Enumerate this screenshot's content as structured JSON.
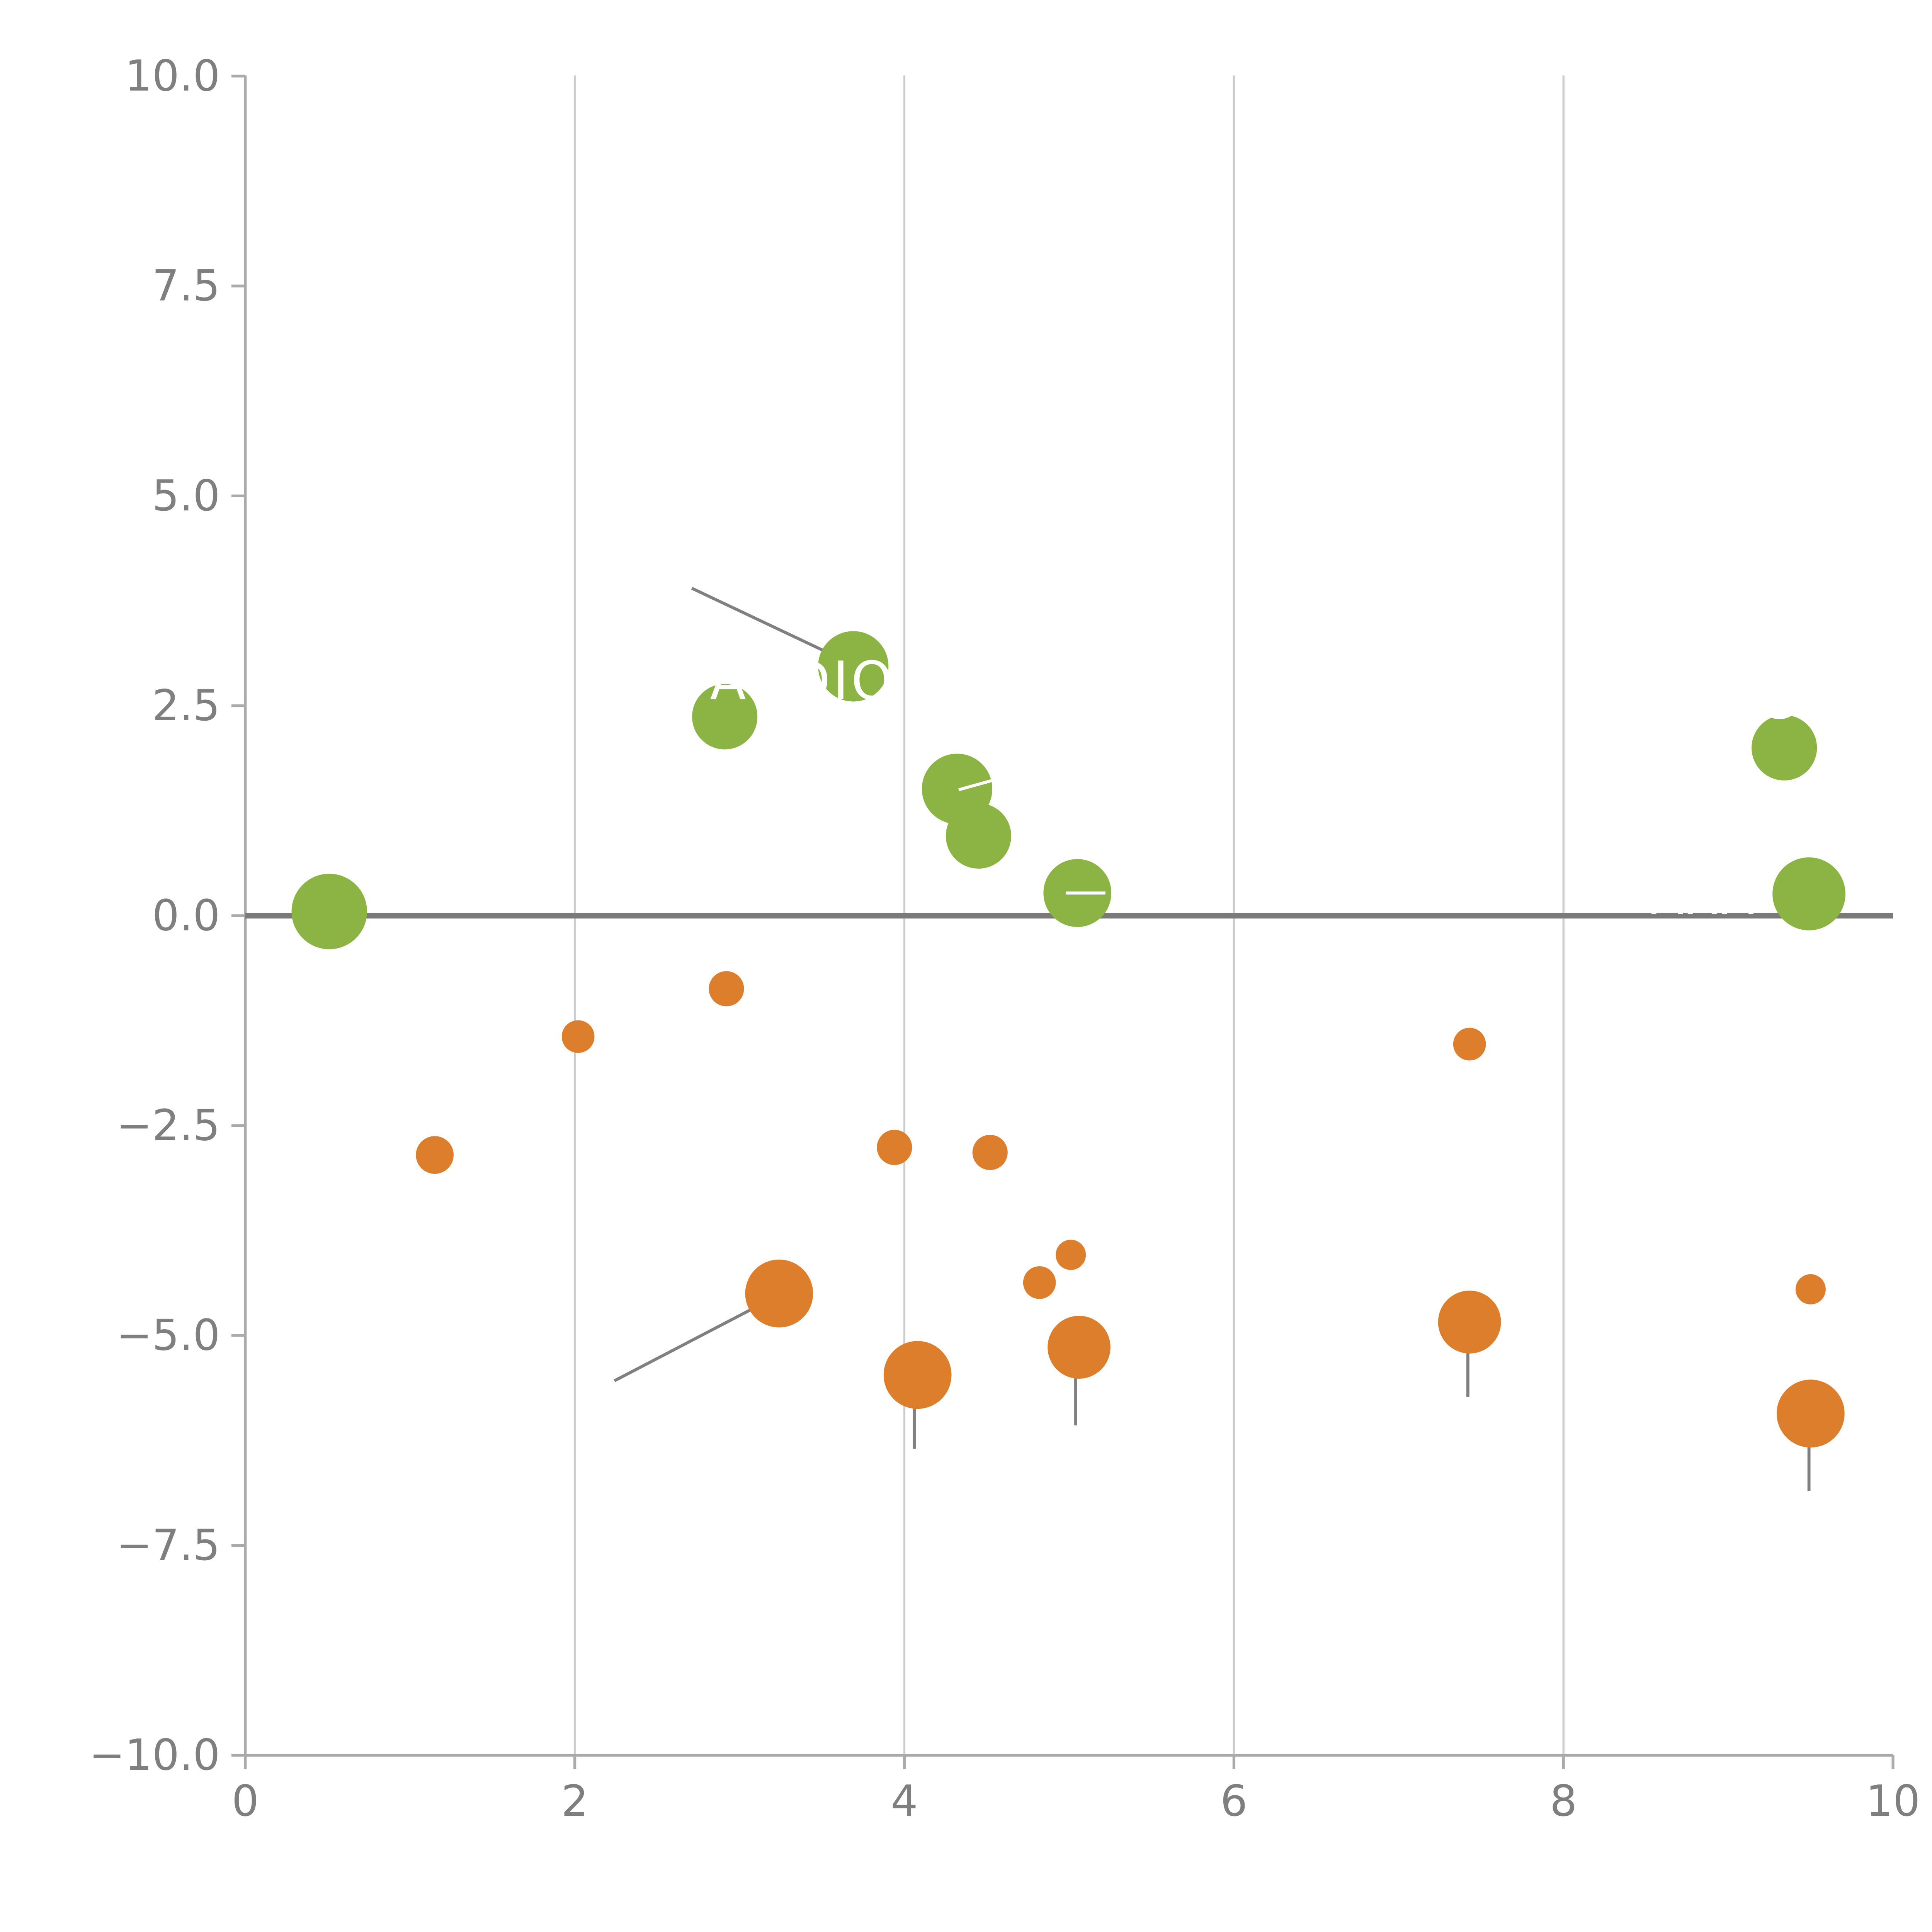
{
  "chart_data": {
    "type": "scatter",
    "title": "",
    "xlabel": "",
    "ylabel": "",
    "x_axis": {
      "min": 0,
      "max": 10,
      "tick_labels": [
        "0",
        "2",
        "4",
        "6",
        "8",
        "10"
      ],
      "tick_values": [
        0,
        2,
        4,
        6,
        8,
        10
      ]
    },
    "y_axis": {
      "min": -10,
      "max": 10,
      "tick_labels": [
        "10.0",
        "7.5",
        "5.0",
        "2.5",
        "0.0",
        "−2.5",
        "−5.0",
        "−7.5",
        "−10.0"
      ],
      "tick_values": [
        10,
        7.5,
        5,
        2.5,
        0,
        -2.5,
        -5,
        -7.5,
        -10
      ]
    },
    "grid": {
      "vertical_at": [
        2,
        4,
        6,
        8
      ],
      "horizontal": false
    },
    "zero_line": {
      "y": 0
    },
    "legend": "none",
    "series": [
      {
        "name": "positive-change-bubbles",
        "color": "#8cb445",
        "points": [
          {
            "x": 0.51,
            "y": 0.05,
            "r": 30
          },
          {
            "x": 2.91,
            "y": 2.37,
            "r": 26
          },
          {
            "x": 3.69,
            "y": 2.97,
            "r": 28
          },
          {
            "x": 4.32,
            "y": 1.51,
            "r": 28
          },
          {
            "x": 4.45,
            "y": 0.95,
            "r": 26
          },
          {
            "x": 5.05,
            "y": 0.27,
            "r": 27
          },
          {
            "x": 9.34,
            "y": 2.0,
            "r": 26
          },
          {
            "x": 9.49,
            "y": 0.26,
            "r": 29
          }
        ]
      },
      {
        "name": "negative-change-bubbles",
        "color": "#dd7e2c",
        "points": [
          {
            "x": 1.15,
            "y": -2.85,
            "r": 15
          },
          {
            "x": 2.02,
            "y": -1.44,
            "r": 13
          },
          {
            "x": 2.92,
            "y": -0.87,
            "r": 14
          },
          {
            "x": 3.24,
            "y": -4.5,
            "r": 27
          },
          {
            "x": 3.94,
            "y": -2.76,
            "r": 14
          },
          {
            "x": 4.08,
            "y": -5.47,
            "r": 27
          },
          {
            "x": 4.52,
            "y": -2.82,
            "r": 14
          },
          {
            "x": 4.82,
            "y": -4.37,
            "r": 13
          },
          {
            "x": 5.01,
            "y": -4.04,
            "r": 12
          },
          {
            "x": 5.06,
            "y": -5.14,
            "r": 25
          },
          {
            "x": 7.43,
            "y": -1.53,
            "r": 13
          },
          {
            "x": 7.43,
            "y": -4.84,
            "r": 25
          },
          {
            "x": 9.5,
            "y": -4.45,
            "r": 12
          },
          {
            "x": 9.5,
            "y": -5.93,
            "r": 27
          }
        ]
      }
    ],
    "leader_lines": [
      {
        "x1": 2.71,
        "y1": 3.9,
        "x2": 3.55,
        "y2": 3.12,
        "color": "#808080"
      },
      {
        "x1": 3.09,
        "y1": -4.67,
        "x2": 2.24,
        "y2": -5.54,
        "color": "#808080"
      },
      {
        "x1": 4.06,
        "y1": -5.6,
        "x2": 4.06,
        "y2": -6.35,
        "color": "#808080"
      },
      {
        "x1": 5.04,
        "y1": -5.3,
        "x2": 5.04,
        "y2": -6.07,
        "color": "#808080"
      },
      {
        "x1": 7.42,
        "y1": -4.95,
        "x2": 7.42,
        "y2": -5.73,
        "color": "#808080"
      },
      {
        "x1": 9.49,
        "y1": -6.0,
        "x2": 9.49,
        "y2": -6.85,
        "color": "#808080"
      },
      {
        "x1": 4.33,
        "y1": 1.5,
        "x2": 4.55,
        "y2": 1.62,
        "color": "#ffffff"
      },
      {
        "x1": 4.98,
        "y1": 0.27,
        "x2": 5.22,
        "y2": 0.27,
        "color": "#ffffff"
      }
    ],
    "labels": [
      {
        "text": "AUDIO",
        "x": 2.82,
        "y": 2.58,
        "color": "#ffffff",
        "size": 42
      },
      {
        "text": "CE",
        "x": 9.18,
        "y": 2.35,
        "color": "#ffffff",
        "size": 42
      },
      {
        "text": "AXA",
        "x": 8.53,
        "y": 0.02,
        "color": "#ffffff",
        "size": 38
      }
    ],
    "style": {
      "positive_color": "#8cb445",
      "negative_color": "#dd7e2c",
      "grid_color": "#cccccc",
      "axis_color": "#aaaaaa",
      "tick_label_color": "#7f7f7f",
      "zero_line_color": "#7a7a7a",
      "background": "#ffffff"
    }
  }
}
